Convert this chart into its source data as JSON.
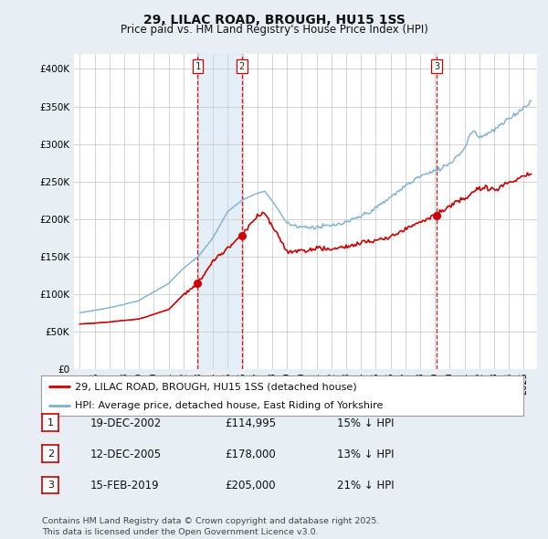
{
  "title": "29, LILAC ROAD, BROUGH, HU15 1SS",
  "subtitle": "Price paid vs. HM Land Registry's House Price Index (HPI)",
  "sale_times": [
    2002.96,
    2005.95,
    2019.12
  ],
  "sale_prices": [
    114995,
    178000,
    205000
  ],
  "sale_labels": [
    "1",
    "2",
    "3"
  ],
  "sale_info": [
    {
      "label": "1",
      "date": "19-DEC-2002",
      "price": "£114,995",
      "pct": "15% ↓ HPI"
    },
    {
      "label": "2",
      "date": "12-DEC-2005",
      "price": "£178,000",
      "pct": "13% ↓ HPI"
    },
    {
      "label": "3",
      "date": "15-FEB-2019",
      "price": "£205,000",
      "pct": "21% ↓ HPI"
    }
  ],
  "legend_line1": "29, LILAC ROAD, BROUGH, HU15 1SS (detached house)",
  "legend_line2": "HPI: Average price, detached house, East Riding of Yorkshire",
  "footer": "Contains HM Land Registry data © Crown copyright and database right 2025.\nThis data is licensed under the Open Government Licence v3.0.",
  "ylim": [
    0,
    420000
  ],
  "yticks": [
    0,
    50000,
    100000,
    150000,
    200000,
    250000,
    300000,
    350000,
    400000
  ],
  "xlim_start": 1994.6,
  "xlim_end": 2025.9,
  "background_color": "#e8eef4",
  "plot_bg_color": "#ffffff",
  "red_line_color": "#cc0000",
  "blue_line_color": "#7ab0d4",
  "vline_color": "#cc0000",
  "grid_color": "#cccccc",
  "shade_color": "#d8e8f4",
  "title_color": "#111111"
}
